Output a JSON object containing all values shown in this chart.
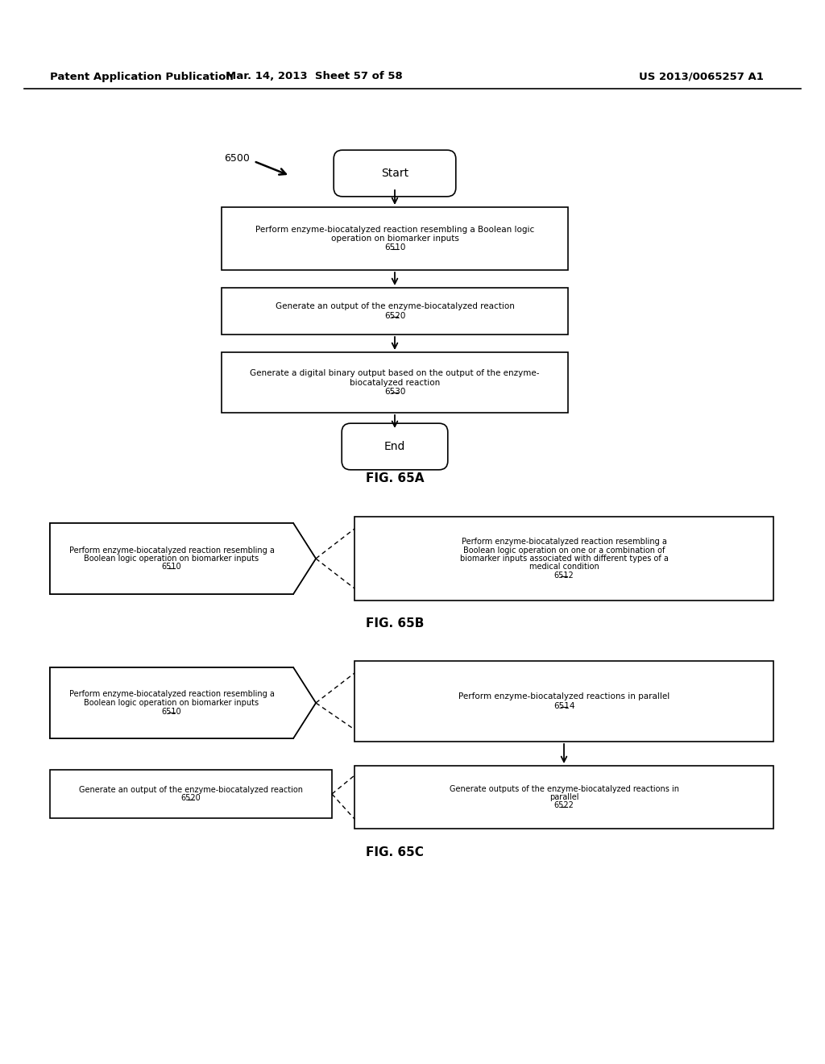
{
  "bg_color": "#ffffff",
  "header_line1": "Patent Application Publication",
  "header_line2": "Mar. 14, 2013  Sheet 57 of 58",
  "header_line3": "US 2013/0065257 A1",
  "fig65a_label": "FIG. 65A",
  "fig65b_label": "FIG. 65B",
  "fig65c_label": "FIG. 65C",
  "diagram_label": "6500",
  "start_text": "Start",
  "end_text": "End"
}
